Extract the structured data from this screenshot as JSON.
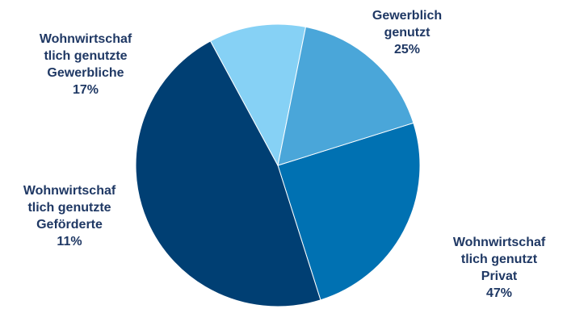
{
  "chart_data": {
    "type": "pie",
    "title": "",
    "start_angle_deg": 72.5,
    "slices": [
      {
        "label_lines": [
          "Gewerblich",
          "genutzt"
        ],
        "percent_label": "25%",
        "value": 25,
        "color": "#0071b2"
      },
      {
        "label_lines": [
          "Wohnwirtschaf",
          "tlich genutzt",
          "Privat"
        ],
        "percent_label": "47%",
        "value": 47,
        "color": "#003f73"
      },
      {
        "label_lines": [
          "Wohnwirtschaf",
          "tlich genutzte",
          "Geförderte"
        ],
        "percent_label": "11%",
        "value": 11,
        "color": "#86d1f5"
      },
      {
        "label_lines": [
          "Wohnwirtschaf",
          "tlich genutzte",
          "Gewerbliche"
        ],
        "percent_label": "17%",
        "value": 17,
        "color": "#4aa6d9"
      }
    ],
    "label_color": "#1f3864"
  }
}
